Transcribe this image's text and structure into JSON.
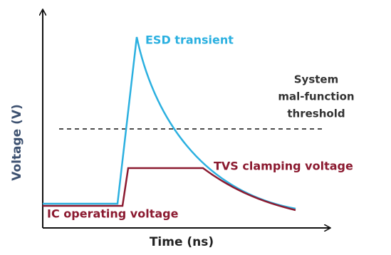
{
  "labels": {
    "esd": "ESD transient",
    "threshold": [
      "System",
      "mal-function",
      "threshold"
    ],
    "tvs": "TVS clamping voltage",
    "ic": "IC operating voltage"
  },
  "axes": {
    "y": "Voltage (V)",
    "x": "Time (ns)"
  }
}
